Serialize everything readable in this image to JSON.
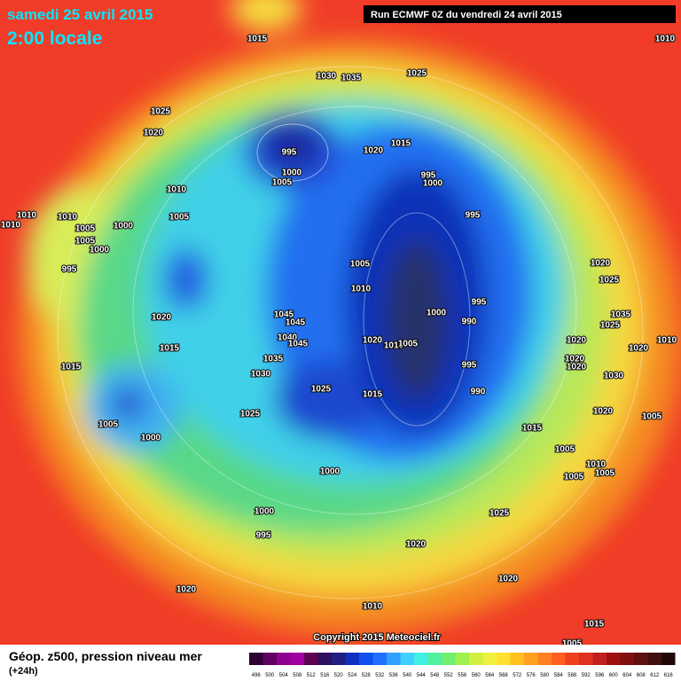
{
  "header": {
    "date": "samedi 25 avril 2015",
    "time": "2:00 locale",
    "run": "Run ECMWF 0Z du vendredi 24 avril 2015"
  },
  "footer": {
    "copyright": "Copyright 2015 Meteociel.fr",
    "product": "Géop. z500, pression niveau mer",
    "lead": "(+24h)"
  },
  "pressure_labels": [
    "1015",
    "1010",
    "1030",
    "1035",
    "1025",
    "1025",
    "1020",
    "995",
    "1000",
    "1005",
    "1015",
    "1020",
    "995",
    "1000",
    "1010",
    "1005",
    "1010",
    "1010",
    "1010",
    "1005",
    "1000",
    "1005",
    "1000",
    "995",
    "995",
    "1005",
    "1010",
    "1020",
    "1025",
    "1020",
    "1000",
    "995",
    "990",
    "1035",
    "1025",
    "1045",
    "1045",
    "1040",
    "1045",
    "1015",
    "1020",
    "1010",
    "1005",
    "1020",
    "1020",
    "1010",
    "1020",
    "1020",
    "995",
    "1035",
    "1030",
    "1015",
    "1025",
    "1015",
    "990",
    "1030",
    "1025",
    "1020",
    "1005",
    "1005",
    "1000",
    "1015",
    "1005",
    "1010",
    "1005",
    "1005",
    "1000",
    "1025",
    "1000",
    "995",
    "1020",
    "1020",
    "1020",
    "1010",
    "1015",
    "1005"
  ],
  "scale": [
    {
      "label": "496",
      "color": "#300030"
    },
    {
      "label": "500",
      "color": "#600060"
    },
    {
      "label": "504",
      "color": "#900090"
    },
    {
      "label": "508",
      "color": "#a000a0"
    },
    {
      "label": "512",
      "color": "#600050"
    },
    {
      "label": "516",
      "color": "#301060"
    },
    {
      "label": "520",
      "color": "#202080"
    },
    {
      "label": "524",
      "color": "#1030c0"
    },
    {
      "label": "528",
      "color": "#1050f0"
    },
    {
      "label": "532",
      "color": "#2070ff"
    },
    {
      "label": "536",
      "color": "#30a0ff"
    },
    {
      "label": "540",
      "color": "#40d0ff"
    },
    {
      "label": "544",
      "color": "#40f0e0"
    },
    {
      "label": "548",
      "color": "#50f0a0"
    },
    {
      "label": "552",
      "color": "#70f070"
    },
    {
      "label": "556",
      "color": "#a0f050"
    },
    {
      "label": "560",
      "color": "#d0f040"
    },
    {
      "label": "564",
      "color": "#f0f040"
    },
    {
      "label": "568",
      "color": "#ffe030"
    },
    {
      "label": "572",
      "color": "#ffc020"
    },
    {
      "label": "576",
      "color": "#ffa020"
    },
    {
      "label": "580",
      "color": "#ff8020"
    },
    {
      "label": "584",
      "color": "#ff6020"
    },
    {
      "label": "588",
      "color": "#f04020"
    },
    {
      "label": "592",
      "color": "#e03020"
    },
    {
      "label": "596",
      "color": "#c02020"
    },
    {
      "label": "600",
      "color": "#a01010"
    },
    {
      "label": "604",
      "color": "#801010"
    },
    {
      "label": "608",
      "color": "#601010"
    },
    {
      "label": "612",
      "color": "#401010"
    },
    {
      "label": "616",
      "color": "#200808"
    }
  ]
}
